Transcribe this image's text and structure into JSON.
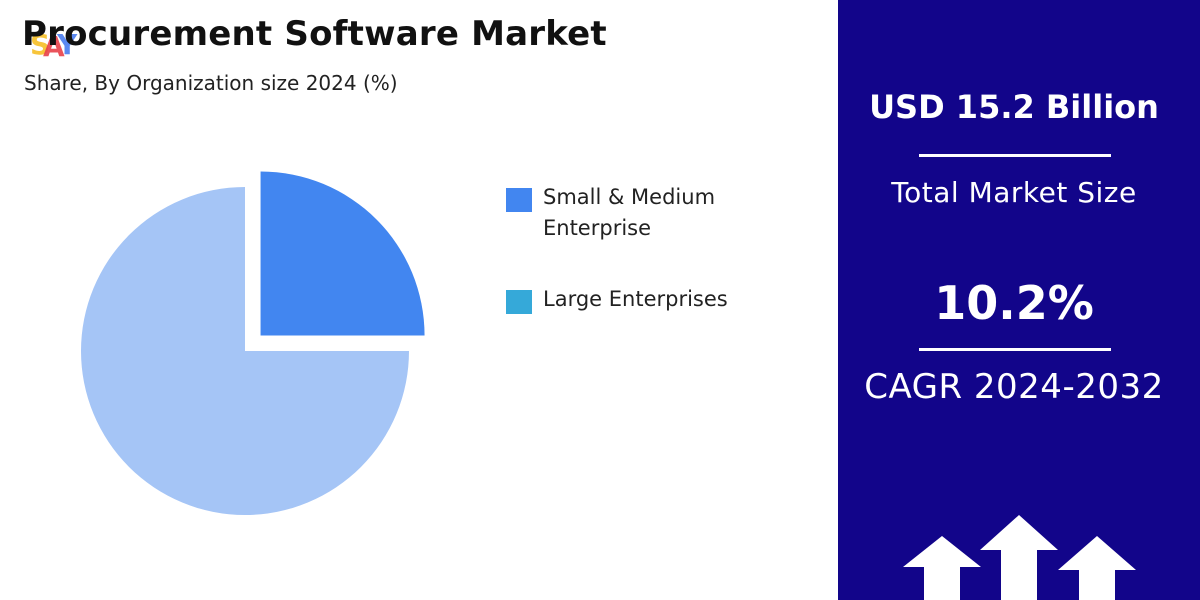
{
  "header": {
    "title": "Procurement Software Market",
    "subtitle": "Share, By Organization size 2024 (%)"
  },
  "chart_data": {
    "type": "pie",
    "title": "Procurement Software Market",
    "subtitle": "Share, By Organization size 2024 (%)",
    "series": [
      {
        "name": "Small & Medium Enterprise",
        "value": 25,
        "color": "#4286f0",
        "exploded": true
      },
      {
        "name": "Large Enterprises",
        "value": 75,
        "color": "#a5c5f6",
        "exploded": false
      }
    ],
    "legend_colors": [
      "#4286f0",
      "#35a9d9"
    ],
    "legend_position": "right"
  },
  "stats": {
    "market_value": "USD 15.2 Billion",
    "market_label": "Total Market Size",
    "cagr_value": "10.2%",
    "cagr_label": "CAGR 2024-2032"
  },
  "colors": {
    "panel_bg": "#12058a",
    "text_dark": "#111111",
    "logo_colors": [
      "#f7c53b",
      "#e8414a",
      "#4a7df0"
    ]
  },
  "icons": [
    "logo-icon",
    "growth-arrows-icon"
  ]
}
